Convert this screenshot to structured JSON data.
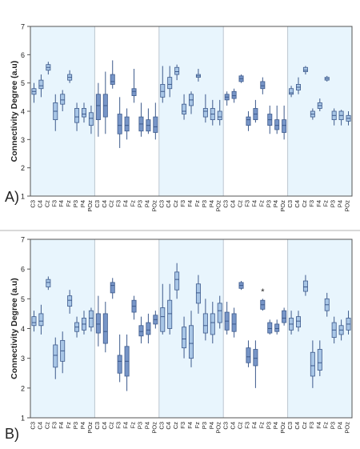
{
  "figure": {
    "panel_labels": [
      "A)",
      "B)"
    ]
  },
  "colors": {
    "background": "#ffffff",
    "band_fill": "#e8f5fd",
    "light_box": "#a8c6e6",
    "dark_box": "#7795c7",
    "box_stroke": "#3d5a8c",
    "axis": "#555555",
    "text": "#222222",
    "panel_divider": "#d9d9d9"
  },
  "chart_data": [
    {
      "type": "box",
      "panel_label": "A)",
      "ylabel": "Connectivity Degree (a.u)",
      "xlabel": "",
      "ylim": [
        1,
        7
      ],
      "yticks": [
        1,
        2,
        3,
        4,
        5,
        6,
        7
      ],
      "grid": false,
      "legend": "none",
      "categories": [
        "C3",
        "C4",
        "Cz",
        "F3",
        "F4",
        "Fz",
        "P3",
        "P4",
        "POz"
      ],
      "groups": [
        {
          "shade": "light",
          "band": true,
          "boxes": [
            [
              4.3,
              4.6,
              4.7,
              4.8,
              5.0
            ],
            [
              4.5,
              4.8,
              4.9,
              5.1,
              5.3
            ],
            [
              5.3,
              5.45,
              5.55,
              5.65,
              5.75
            ],
            [
              3.3,
              3.7,
              4.0,
              4.3,
              4.6
            ],
            [
              4.0,
              4.25,
              4.4,
              4.6,
              4.75
            ],
            [
              5.0,
              5.1,
              5.2,
              5.3,
              5.45
            ],
            [
              3.3,
              3.6,
              3.8,
              4.1,
              4.3
            ],
            [
              3.6,
              3.8,
              3.9,
              4.1,
              4.3
            ],
            [
              3.2,
              3.5,
              3.75,
              3.95,
              4.2
            ]
          ]
        },
        {
          "shade": "dark",
          "band": false,
          "boxes": [
            [
              3.1,
              3.7,
              4.2,
              4.6,
              5.0
            ],
            [
              3.2,
              3.8,
              4.2,
              4.6,
              5.4
            ],
            [
              4.8,
              4.95,
              5.05,
              5.3,
              5.8
            ],
            [
              2.7,
              3.2,
              3.5,
              3.9,
              4.5
            ],
            [
              3.0,
              3.3,
              3.5,
              3.8,
              4.1
            ],
            [
              4.3,
              4.55,
              4.7,
              4.8,
              5.5
            ],
            [
              3.1,
              3.3,
              3.55,
              3.8,
              4.3
            ],
            [
              3.2,
              3.3,
              3.5,
              3.7,
              4.1
            ],
            [
              3.0,
              3.25,
              3.45,
              3.8,
              4.3
            ]
          ]
        },
        {
          "shade": "light",
          "band": true,
          "boxes": [
            [
              4.3,
              4.5,
              4.7,
              4.95,
              5.6
            ],
            [
              4.5,
              4.8,
              4.95,
              5.2,
              5.6
            ],
            [
              5.1,
              5.3,
              5.4,
              5.55,
              5.65
            ],
            [
              3.7,
              3.9,
              4.0,
              4.25,
              4.6
            ],
            [
              3.9,
              4.2,
              4.4,
              4.6,
              4.7
            ],
            [
              5.05,
              5.2,
              5.25,
              5.3,
              5.5
            ],
            [
              3.6,
              3.8,
              4.0,
              4.1,
              4.6
            ],
            [
              3.5,
              3.7,
              3.9,
              4.1,
              4.4
            ],
            [
              3.5,
              3.7,
              3.8,
              4.0,
              4.4
            ]
          ]
        },
        {
          "shade": "dark",
          "band": false,
          "boxes": [
            [
              4.2,
              4.4,
              4.5,
              4.6,
              4.7
            ],
            [
              4.3,
              4.45,
              4.55,
              4.7,
              4.8
            ],
            [
              5.0,
              5.05,
              5.15,
              5.25,
              5.3
            ],
            [
              3.3,
              3.5,
              3.7,
              3.8,
              4.0
            ],
            [
              3.6,
              3.7,
              3.9,
              4.1,
              4.4
            ],
            [
              4.6,
              4.8,
              4.9,
              5.05,
              5.2
            ],
            [
              3.2,
              3.5,
              3.7,
              3.9,
              4.2
            ],
            [
              3.2,
              3.35,
              3.5,
              3.7,
              4.2
            ],
            [
              3.0,
              3.25,
              3.5,
              3.7,
              4.2
            ]
          ]
        },
        {
          "shade": "light",
          "band": true,
          "boxes": [
            [
              4.5,
              4.6,
              4.65,
              4.8,
              4.9
            ],
            [
              4.6,
              4.75,
              4.85,
              4.95,
              5.2
            ],
            [
              5.3,
              5.4,
              5.45,
              5.55,
              5.6
            ],
            [
              3.7,
              3.8,
              3.9,
              4.0,
              4.1
            ],
            [
              4.0,
              4.1,
              4.2,
              4.3,
              4.45
            ],
            [
              5.05,
              5.1,
              5.15,
              5.2,
              5.25
            ],
            [
              3.5,
              3.7,
              3.85,
              4.0,
              4.1
            ],
            [
              3.5,
              3.7,
              3.85,
              4.0,
              4.05
            ],
            [
              3.5,
              3.65,
              3.75,
              3.85,
              4.0
            ]
          ]
        }
      ],
      "outliers": []
    },
    {
      "type": "box",
      "panel_label": "B)",
      "ylabel": "Connectivity Degree (a.u)",
      "xlabel": "",
      "ylim": [
        1,
        7
      ],
      "yticks": [
        1,
        2,
        3,
        4,
        5,
        6,
        7
      ],
      "grid": false,
      "legend": "none",
      "categories": [
        "C3",
        "C4",
        "Cz",
        "F3",
        "F4",
        "Fz",
        "P3",
        "P4",
        "POz"
      ],
      "groups": [
        {
          "shade": "light",
          "band": true,
          "boxes": [
            [
              3.9,
              4.1,
              4.2,
              4.4,
              4.6
            ],
            [
              3.8,
              4.1,
              4.25,
              4.5,
              4.8
            ],
            [
              5.3,
              5.4,
              5.55,
              5.65,
              5.75
            ],
            [
              2.3,
              2.7,
              3.1,
              3.45,
              3.7
            ],
            [
              2.5,
              2.9,
              3.25,
              3.6,
              3.9
            ],
            [
              4.5,
              4.75,
              4.95,
              5.1,
              5.3
            ],
            [
              3.7,
              3.9,
              4.05,
              4.2,
              4.4
            ],
            [
              3.8,
              3.95,
              4.15,
              4.35,
              4.6
            ],
            [
              3.9,
              4.05,
              4.35,
              4.6,
              4.7
            ]
          ]
        },
        {
          "shade": "dark",
          "band": false,
          "boxes": [
            [
              3.4,
              3.85,
              4.15,
              4.5,
              5.1
            ],
            [
              3.2,
              3.5,
              3.9,
              4.5,
              4.9
            ],
            [
              5.0,
              5.2,
              5.45,
              5.55,
              5.7
            ],
            [
              2.2,
              2.5,
              2.9,
              3.1,
              3.8
            ],
            [
              1.9,
              2.4,
              2.9,
              3.4,
              3.8
            ],
            [
              4.3,
              4.55,
              4.75,
              4.95,
              5.1
            ],
            [
              3.5,
              3.75,
              3.9,
              4.1,
              4.4
            ],
            [
              3.5,
              3.8,
              3.95,
              4.2,
              4.5
            ],
            [
              4.0,
              4.15,
              4.3,
              4.45,
              4.6
            ]
          ]
        },
        {
          "shade": "light",
          "band": true,
          "boxes": [
            [
              3.8,
              3.9,
              4.4,
              4.7,
              5.5
            ],
            [
              3.8,
              4.0,
              4.5,
              4.95,
              5.5
            ],
            [
              5.0,
              5.3,
              5.65,
              5.9,
              6.2
            ],
            [
              3.0,
              3.35,
              3.65,
              4.05,
              4.4
            ],
            [
              2.7,
              3.0,
              3.5,
              4.1,
              4.6
            ],
            [
              4.5,
              4.85,
              5.2,
              5.5,
              5.8
            ],
            [
              3.6,
              3.85,
              4.1,
              4.5,
              5.0
            ],
            [
              3.5,
              3.8,
              4.2,
              4.5,
              4.9
            ],
            [
              4.0,
              4.2,
              4.6,
              4.85,
              5.1
            ]
          ]
        },
        {
          "shade": "dark",
          "band": false,
          "boxes": [
            [
              3.8,
              3.95,
              4.25,
              4.55,
              4.9
            ],
            [
              3.7,
              3.9,
              4.15,
              4.5,
              4.7
            ],
            [
              5.3,
              5.35,
              5.45,
              5.55,
              5.6
            ],
            [
              2.7,
              2.85,
              3.05,
              3.35,
              3.6
            ],
            [
              2.0,
              2.75,
              3.0,
              3.3,
              3.6
            ],
            [
              4.6,
              4.65,
              4.8,
              4.95,
              5.0
            ],
            [
              3.8,
              3.85,
              4.0,
              4.2,
              4.3
            ],
            [
              3.8,
              3.9,
              4.0,
              4.15,
              4.3
            ],
            [
              4.1,
              4.2,
              4.35,
              4.6,
              4.7
            ]
          ]
        },
        {
          "shade": "light",
          "band": true,
          "boxes": [
            [
              3.8,
              3.95,
              4.15,
              4.35,
              4.6
            ],
            [
              3.9,
              4.05,
              4.25,
              4.4,
              4.6
            ],
            [
              5.1,
              5.25,
              5.4,
              5.6,
              5.8
            ],
            [
              2.0,
              2.4,
              2.75,
              3.2,
              3.6
            ],
            [
              2.4,
              2.6,
              2.85,
              3.3,
              3.6
            ],
            [
              4.4,
              4.6,
              4.8,
              5.0,
              5.2
            ],
            [
              3.5,
              3.7,
              3.95,
              4.2,
              4.4
            ],
            [
              3.6,
              3.8,
              3.95,
              4.1,
              4.3
            ],
            [
              3.8,
              3.95,
              4.15,
              4.35,
              4.6
            ]
          ]
        }
      ],
      "outliers": [
        {
          "group": 3,
          "category": "Fz",
          "value": 5.25
        }
      ]
    }
  ]
}
